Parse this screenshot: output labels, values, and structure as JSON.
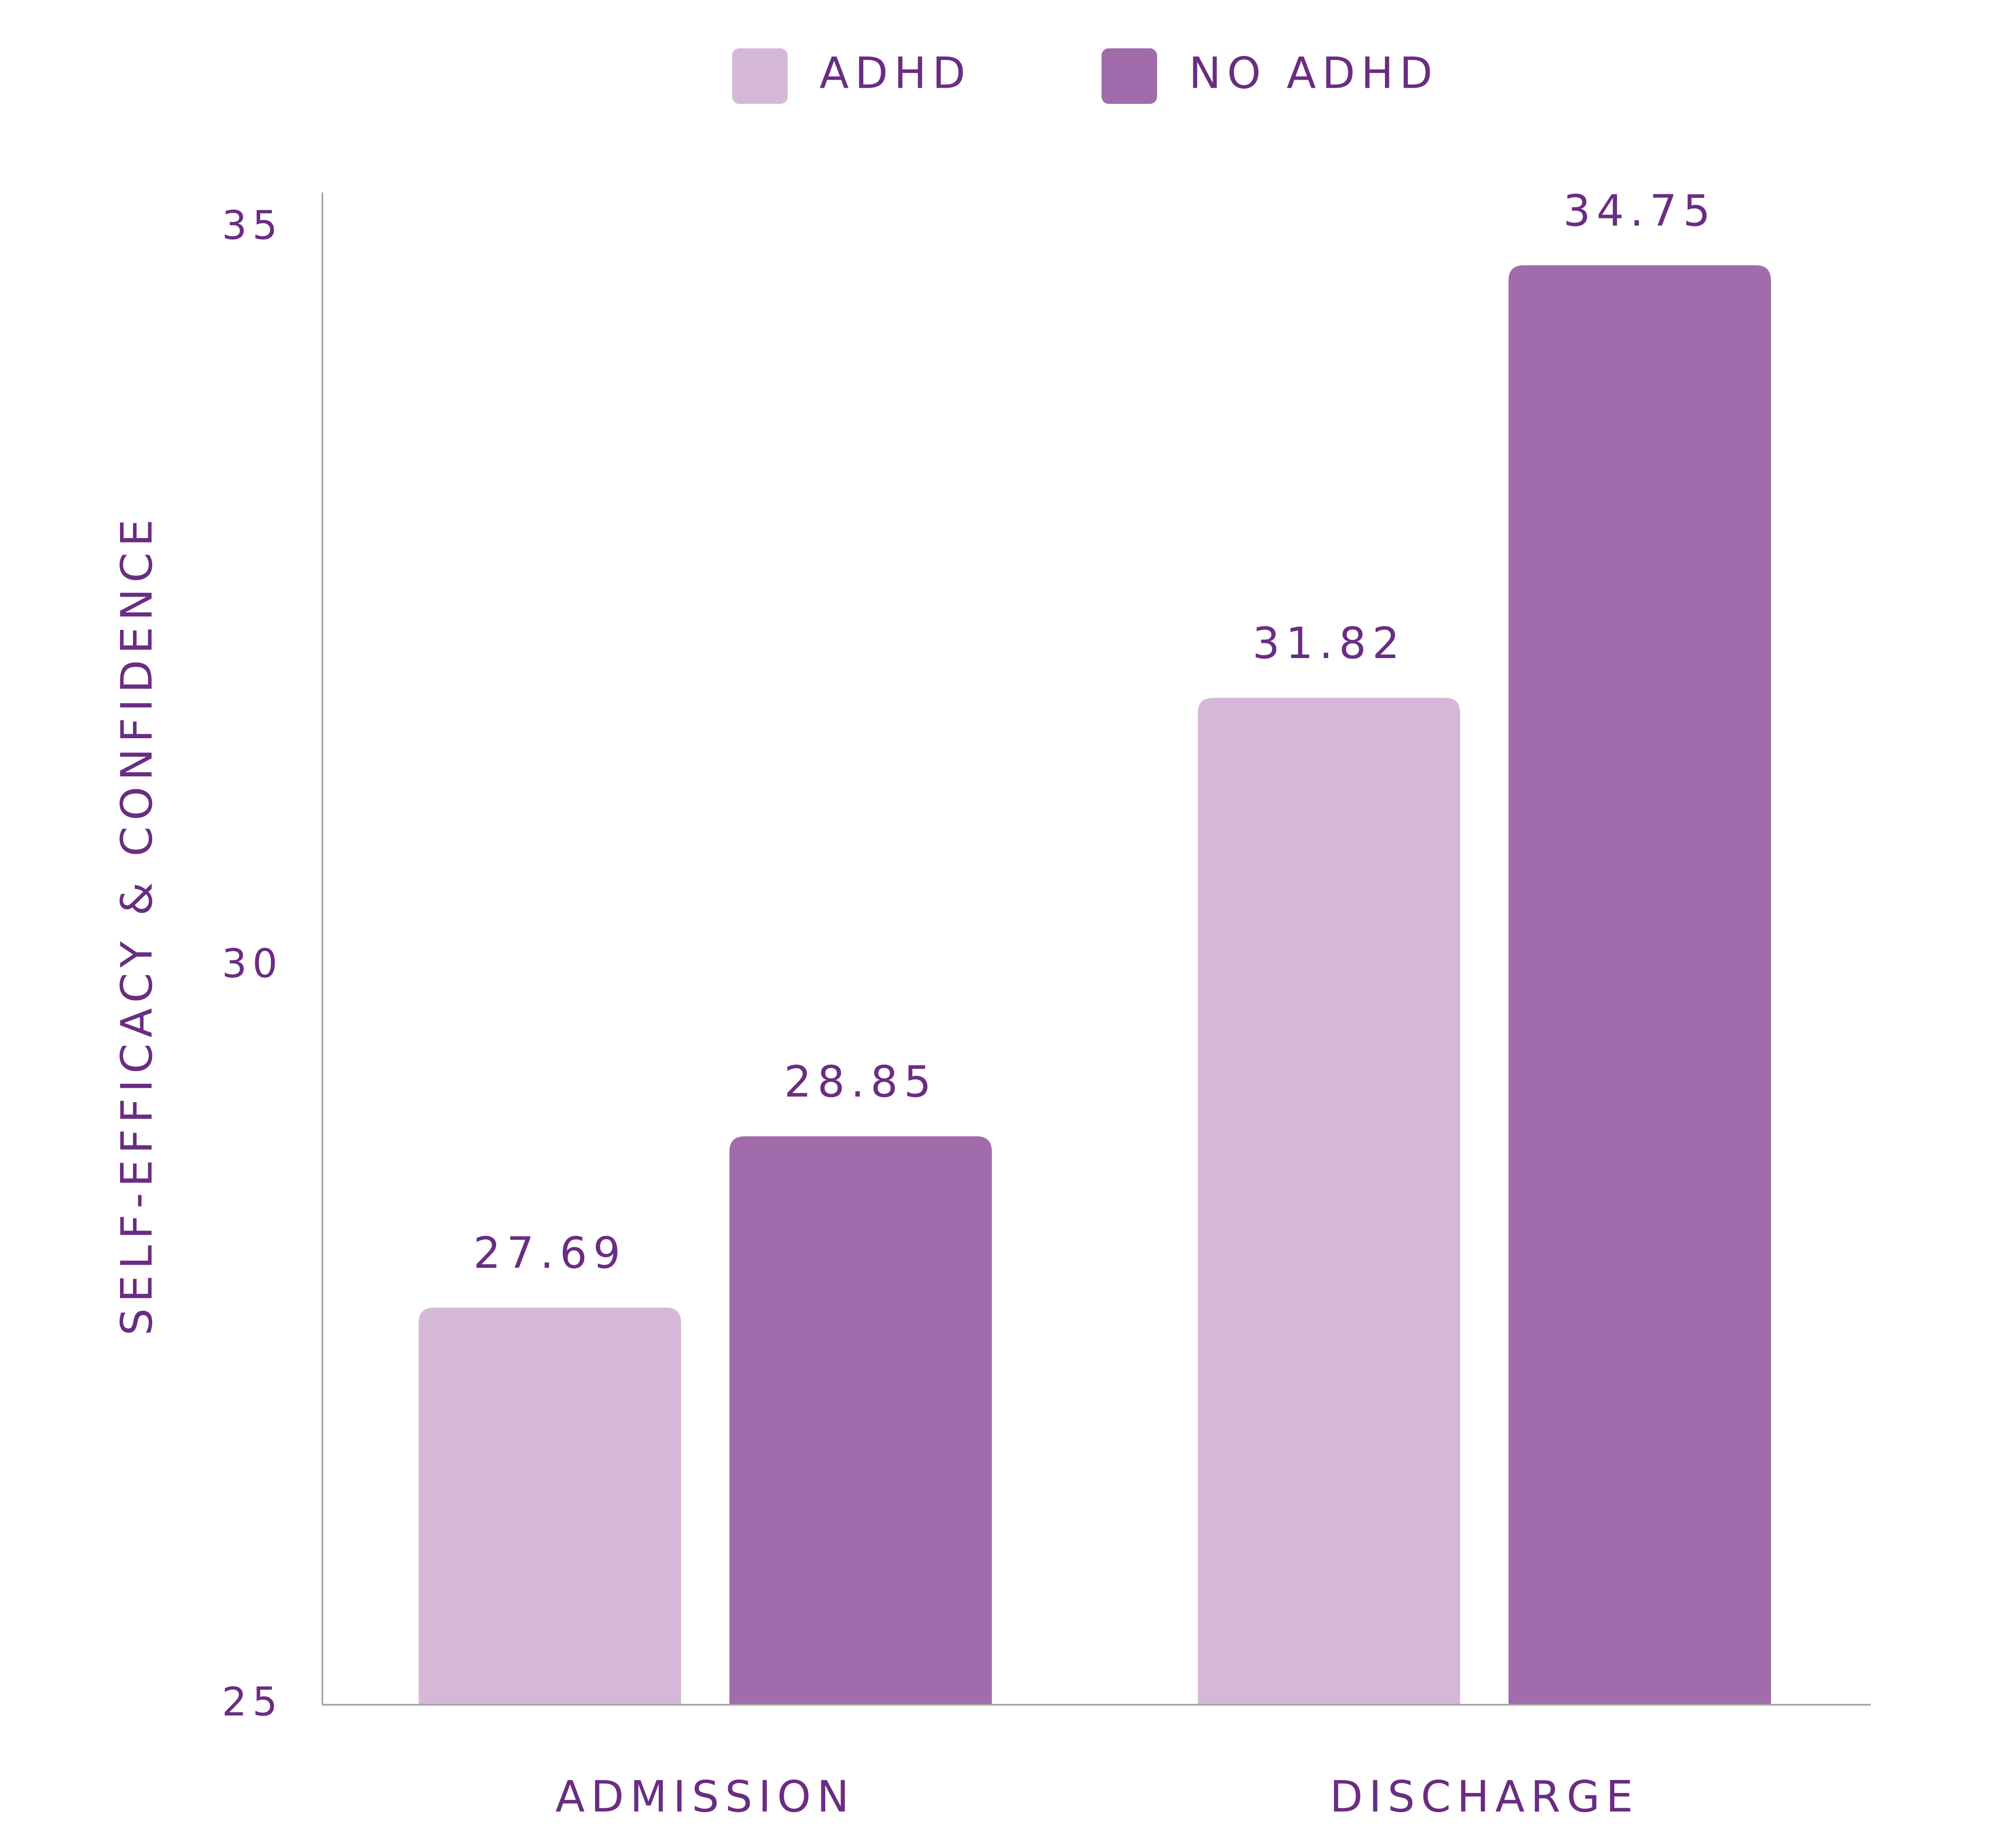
{
  "chart_data": {
    "type": "bar",
    "categories": [
      "ADMISSION",
      "DISCHARGE"
    ],
    "series": [
      {
        "name": "ADHD",
        "values": [
          27.69,
          31.82
        ],
        "color": "#d5b8d7"
      },
      {
        "name": "NO ADHD",
        "values": [
          28.85,
          34.75
        ],
        "color": "#a16bac"
      }
    ],
    "data_labels": [
      [
        "27.69",
        "31.82"
      ],
      [
        "28.85",
        "34.75"
      ]
    ],
    "ylabel": "SELF-EFFICACY & CONFIDENCE",
    "xlabel": "",
    "yticks": [
      25,
      30,
      35
    ],
    "ytick_labels": [
      "25",
      "30",
      "35"
    ],
    "ylim": [
      25,
      35
    ],
    "grid": false,
    "legend_position": "top-center",
    "text_color": "#6a2d82"
  }
}
